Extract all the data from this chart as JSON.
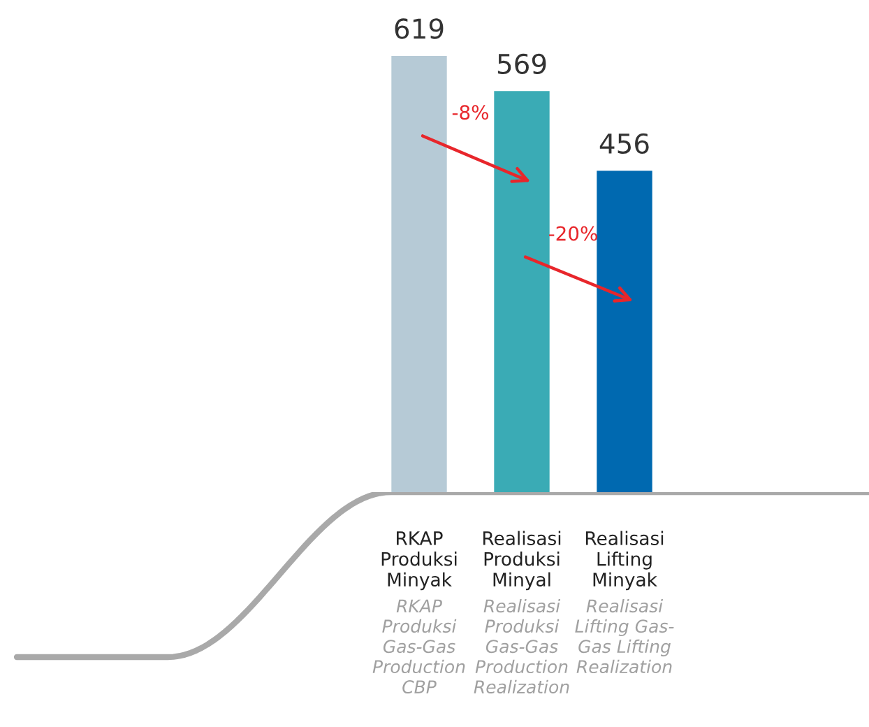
{
  "chart_data": {
    "type": "bar",
    "categories": [
      "RKAP\nProduksi\nMinyak",
      "Realisasi\nProduksi\nMinyal",
      "Realisasi\nLifting\nMinyak"
    ],
    "values": [
      619,
      569,
      456
    ],
    "colors": [
      "#b6cad6",
      "#3aabb5",
      "#0069b0"
    ],
    "data_labels": true,
    "annotations": [
      "-8%",
      "-20%",
      "RKAP\nProduksi\nGas-Gas\nProduction\nCBP",
      "Realisasi\nProduksi\nGas-Gas\nProduction\nRealization",
      "Realisasi\nLifting Gas-\nGas Lifting\nRealization"
    ]
  }
}
